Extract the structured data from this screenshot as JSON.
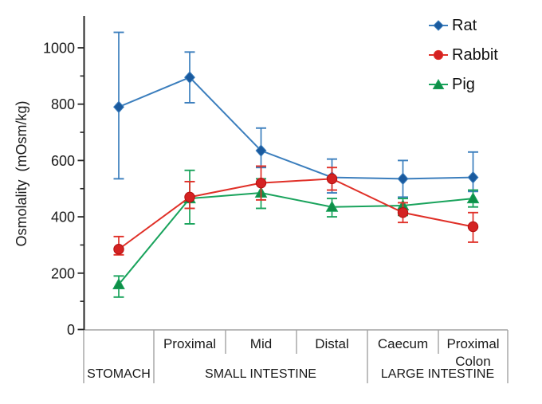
{
  "chart_data": {
    "type": "line",
    "title": "",
    "ylabel": "Osmolality  (mOsm/kg)",
    "ylim": [
      0,
      1100
    ],
    "yticks_major": [
      0,
      200,
      400,
      600,
      800,
      1000
    ],
    "yticks_minor": [
      100,
      300,
      500,
      700,
      900
    ],
    "grid": false,
    "legend_position": "top-right",
    "x_axis": {
      "segments": [
        "",
        "Proximal",
        "Mid",
        "Distal",
        "Caecum",
        "Proximal Colon"
      ],
      "groups": [
        {
          "label": "STOMACH",
          "start": 0,
          "end": 1
        },
        {
          "label": "SMALL INTESTINE",
          "start": 1,
          "end": 4
        },
        {
          "label": "LARGE INTESTINE",
          "start": 4,
          "end": 6
        }
      ]
    },
    "series": [
      {
        "name": "Rat",
        "marker": "diamond",
        "line_color": "#3B7EBD",
        "marker_color": "#1A5A9E",
        "values": [
          790,
          895,
          635,
          540,
          535,
          540
        ],
        "err_high": [
          1055,
          985,
          715,
          605,
          600,
          630
        ],
        "err_low": [
          535,
          805,
          575,
          485,
          470,
          490
        ]
      },
      {
        "name": "Rabbit",
        "marker": "circle",
        "line_color": "#E03028",
        "marker_color": "#D42222",
        "values": [
          285,
          470,
          520,
          535,
          415,
          365
        ],
        "err_high": [
          330,
          525,
          580,
          575,
          450,
          415
        ],
        "err_low": [
          265,
          430,
          460,
          495,
          380,
          310
        ]
      },
      {
        "name": "Pig",
        "marker": "triangle",
        "line_color": "#19A35C",
        "marker_color": "#0F8F48",
        "values": [
          160,
          465,
          485,
          435,
          440,
          465
        ],
        "err_high": [
          190,
          565,
          535,
          465,
          465,
          495
        ],
        "err_low": [
          115,
          375,
          430,
          400,
          405,
          435
        ]
      }
    ],
    "colors": {
      "axis": "#262626",
      "table_lines": "#A3A3A3",
      "text": "#1a1a1a"
    }
  }
}
